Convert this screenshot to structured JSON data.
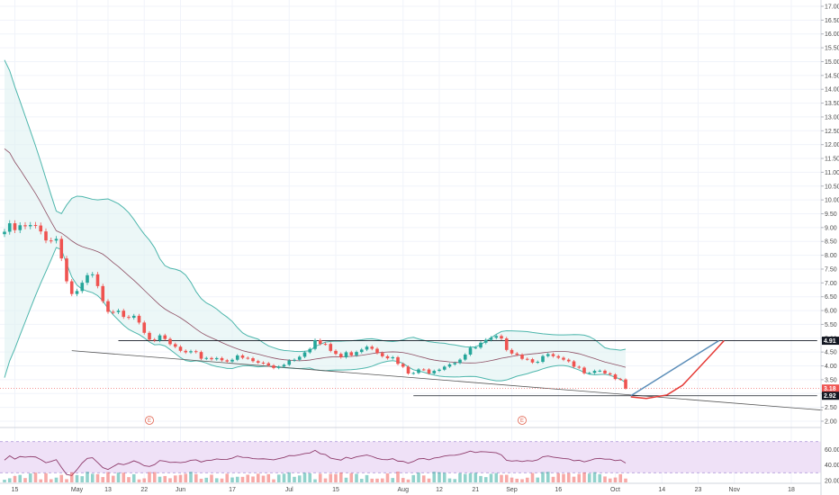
{
  "chart_data": {
    "type": "candlestick",
    "title": "",
    "price_axis": {
      "ticks": [
        "17.00",
        "16.50",
        "16.00",
        "15.50",
        "15.00",
        "14.50",
        "14.00",
        "13.50",
        "13.00",
        "12.50",
        "12.00",
        "11.50",
        "11.00",
        "10.50",
        "10.00",
        "9.50",
        "9.00",
        "8.50",
        "8.00",
        "7.50",
        "7.00",
        "6.50",
        "6.00",
        "5.50",
        "5.00",
        "4.50",
        "4.00",
        "3.50",
        "3.00",
        "2.50",
        "2.00"
      ],
      "range": [
        2.0,
        17.0
      ],
      "tags": [
        {
          "label": "4.91",
          "value": 4.91,
          "color": "#131722"
        },
        {
          "label": "3.18",
          "value": 3.18,
          "color": "#ef5350"
        },
        {
          "label": "2.92",
          "value": 2.92,
          "color": "#131722"
        }
      ]
    },
    "rsi_axis": {
      "ticks": [
        "60.00",
        "40.00",
        "20.00"
      ],
      "range": [
        20,
        80
      ],
      "band": [
        30,
        70
      ]
    },
    "time_axis": {
      "ticks": [
        {
          "label": "15",
          "i": 2
        },
        {
          "label": "May",
          "i": 14
        },
        {
          "label": "13",
          "i": 20
        },
        {
          "label": "22",
          "i": 27
        },
        {
          "label": "Jun",
          "i": 34
        },
        {
          "label": "17",
          "i": 44
        },
        {
          "label": "Jul",
          "i": 55
        },
        {
          "label": "15",
          "i": 64
        },
        {
          "label": "Aug",
          "i": 77
        },
        {
          "label": "12",
          "i": 84
        },
        {
          "label": "21",
          "i": 91
        },
        {
          "label": "Sep",
          "i": 98
        },
        {
          "label": "16",
          "i": 107
        },
        {
          "label": "Oct",
          "i": 118
        },
        {
          "label": "14",
          "i": 127
        },
        {
          "label": "23",
          "i": 134
        },
        {
          "label": "Nov",
          "i": 141
        },
        {
          "label": "18",
          "i": 152
        }
      ]
    },
    "earnings_markers": [
      {
        "label": "E",
        "i": 28
      },
      {
        "label": "E",
        "i": 100
      }
    ],
    "anchors": [
      [
        0,
        8.85
      ],
      [
        5,
        8.95
      ],
      [
        10,
        8.6
      ],
      [
        13,
        6.6
      ],
      [
        17,
        7.2
      ],
      [
        20,
        5.8
      ],
      [
        25,
        5.95
      ],
      [
        28,
        5.1
      ],
      [
        31,
        4.85
      ],
      [
        35,
        4.4
      ],
      [
        40,
        4.3
      ],
      [
        46,
        4.25
      ],
      [
        52,
        3.95
      ],
      [
        56,
        4.3
      ],
      [
        60,
        4.9
      ],
      [
        65,
        4.3
      ],
      [
        70,
        4.8
      ],
      [
        74,
        4.4
      ],
      [
        78,
        3.7
      ],
      [
        82,
        3.85
      ],
      [
        87,
        4.2
      ],
      [
        92,
        4.75
      ],
      [
        95,
        4.95
      ],
      [
        98,
        4.6
      ],
      [
        101,
        4.25
      ],
      [
        106,
        4.3
      ],
      [
        111,
        3.85
      ],
      [
        115,
        3.9
      ],
      [
        118,
        3.6
      ],
      [
        120,
        3.18
      ]
    ],
    "projection_lines": [
      {
        "color": "#5b8db8",
        "points": [
          [
            121,
            2.92
          ],
          [
            138,
            4.91
          ]
        ]
      },
      {
        "color": "#e53935",
        "points": [
          [
            121,
            2.88
          ],
          [
            124,
            2.82
          ],
          [
            128,
            2.95
          ],
          [
            131,
            3.3
          ],
          [
            134,
            3.9
          ],
          [
            137,
            4.5
          ],
          [
            139,
            4.91
          ]
        ]
      }
    ],
    "trend_lines": [
      {
        "color": "#555555",
        "points": [
          [
            13,
            4.55
          ],
          [
            158,
            2.4
          ]
        ]
      },
      {
        "color": "#131722",
        "points": [
          [
            22,
            4.91
          ],
          [
            157,
            4.91
          ]
        ]
      },
      {
        "color": "#131722",
        "points": [
          [
            79,
            2.92
          ],
          [
            157,
            2.92
          ]
        ]
      }
    ],
    "colors": {
      "up": "#26a69a",
      "down": "#ef5350",
      "bollinger": "#4db6ac",
      "bollinger_fill": "#e0f2f1",
      "basis": "#8d4e63",
      "rsi_line": "#8e3b6b",
      "rsi_band": "#efe1f7",
      "rsi_band_border": "#b39ddb"
    }
  }
}
